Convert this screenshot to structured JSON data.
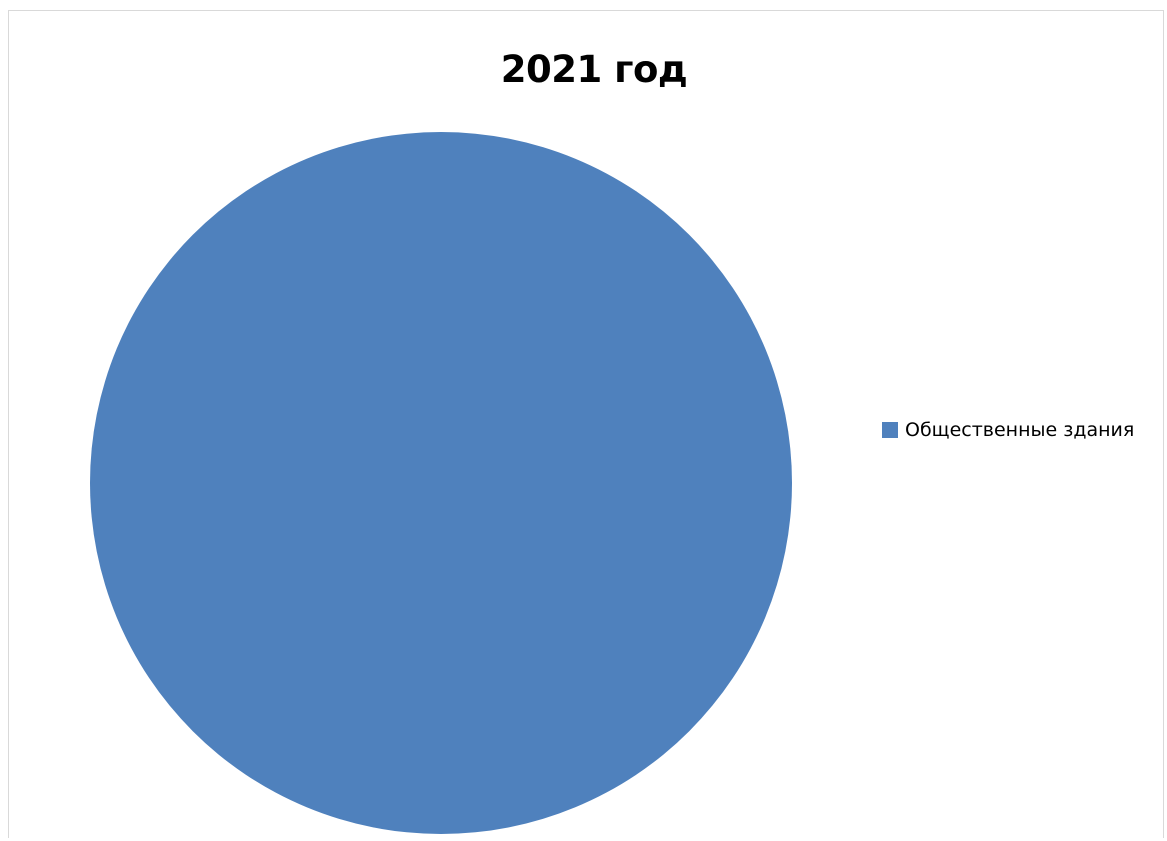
{
  "chart_data": {
    "type": "pie",
    "title": "2021 год",
    "categories": [
      "Общественные здания"
    ],
    "values": [
      100
    ],
    "colors": [
      "#4f81bd"
    ],
    "legend_position": "right"
  }
}
